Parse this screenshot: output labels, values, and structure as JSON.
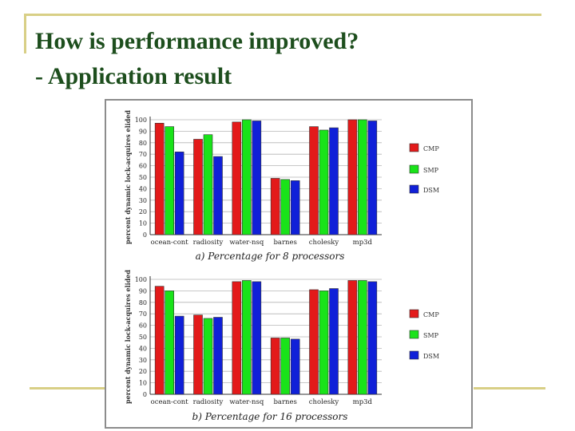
{
  "slide": {
    "title_line1": "How is performance improved?",
    "title_line2": "- Application result"
  },
  "colors": {
    "title": "#1d4e1d",
    "accent_rule": "#d8cf86",
    "CMP": "#e31a1a",
    "SMP": "#19e319",
    "DSM": "#1020d8"
  },
  "chart_data": [
    {
      "type": "bar",
      "caption": "a) Percentage for 8 processors",
      "ylabel": "percent dynamic lock-acquires elided",
      "ylim": [
        0,
        100
      ],
      "yticks": [
        0,
        10,
        20,
        30,
        40,
        50,
        60,
        70,
        80,
        90,
        100
      ],
      "categories": [
        "ocean-cont",
        "radiosity",
        "water-nsq",
        "barnes",
        "cholesky",
        "mp3d"
      ],
      "legend_position": "right",
      "grid": true,
      "series": [
        {
          "name": "CMP",
          "values": [
            97,
            83,
            98,
            49,
            94,
            100
          ]
        },
        {
          "name": "SMP",
          "values": [
            94,
            87,
            100,
            48,
            91,
            100
          ]
        },
        {
          "name": "DSM",
          "values": [
            72,
            68,
            99,
            47,
            93,
            99
          ]
        }
      ]
    },
    {
      "type": "bar",
      "caption": "b) Percentage for 16 processors",
      "ylabel": "percent dynamic lock-acquires elided",
      "ylim": [
        0,
        100
      ],
      "yticks": [
        0,
        10,
        20,
        30,
        40,
        50,
        60,
        70,
        80,
        90,
        100
      ],
      "categories": [
        "ocean-cont",
        "radiosity",
        "water-nsq",
        "barnes",
        "cholesky",
        "mp3d"
      ],
      "legend_position": "right",
      "grid": true,
      "series": [
        {
          "name": "CMP",
          "values": [
            94,
            69,
            98,
            49,
            91,
            99
          ]
        },
        {
          "name": "SMP",
          "values": [
            90,
            66,
            99,
            49,
            90,
            99
          ]
        },
        {
          "name": "DSM",
          "values": [
            68,
            67,
            98,
            48,
            92,
            98
          ]
        }
      ]
    }
  ]
}
